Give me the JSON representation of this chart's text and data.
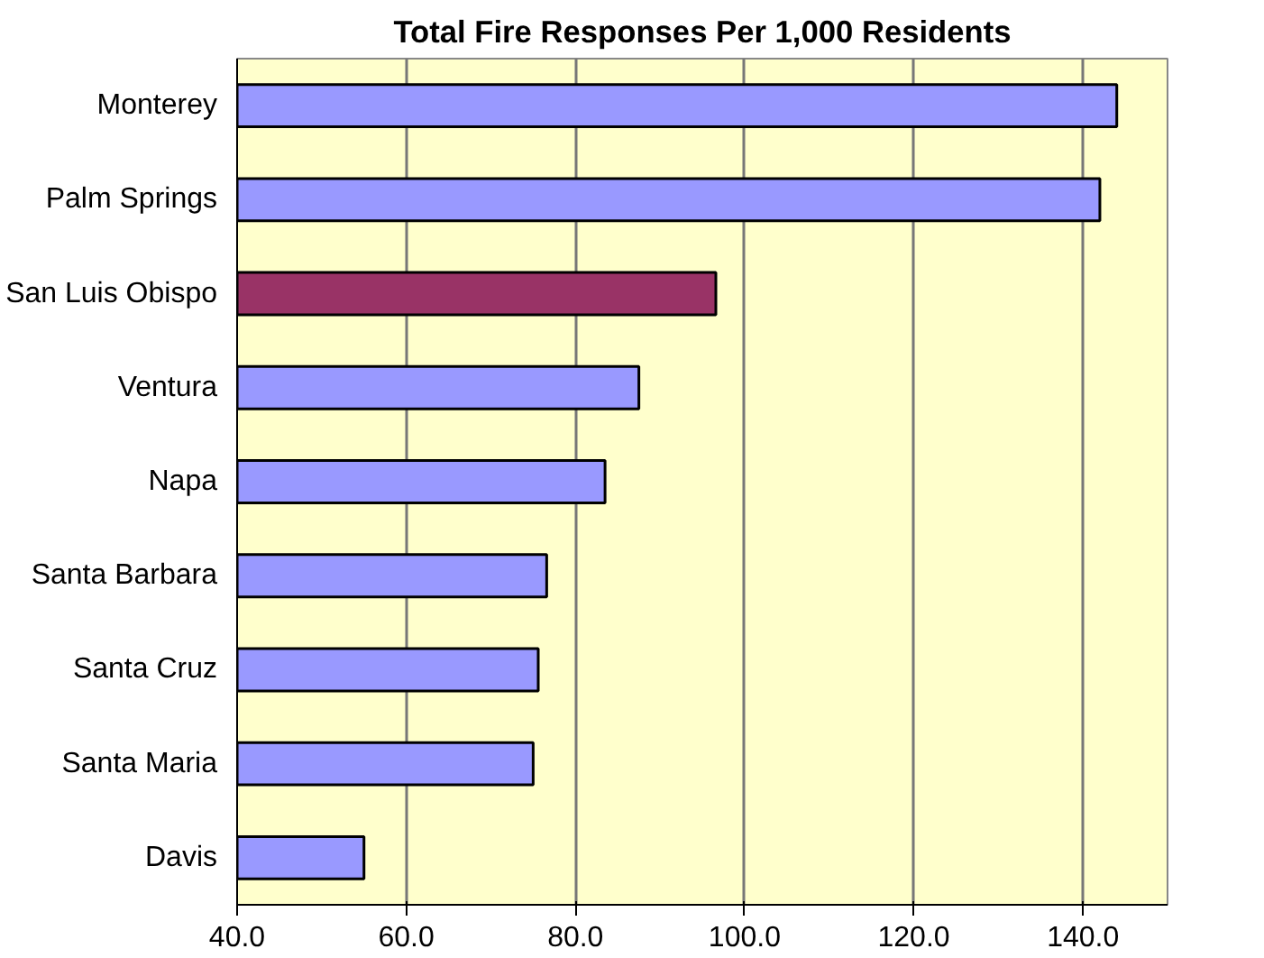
{
  "chart_data": {
    "type": "bar",
    "orientation": "horizontal",
    "title": "Total Fire Responses Per 1,000 Residents",
    "categories": [
      "Monterey",
      "Palm Springs",
      "San Luis Obispo",
      "Ventura",
      "Napa",
      "Santa Barbara",
      "Santa Cruz",
      "Santa Maria",
      "Davis"
    ],
    "values": [
      144,
      142,
      96.6,
      87.5,
      83.5,
      76.6,
      75.6,
      75,
      55
    ],
    "colors": [
      "#9999ff",
      "#9999ff",
      "#993366",
      "#9999ff",
      "#9999ff",
      "#9999ff",
      "#9999ff",
      "#9999ff",
      "#9999ff"
    ],
    "xlim": [
      40,
      150
    ],
    "xticks": [
      {
        "value": 40,
        "label": "40.0"
      },
      {
        "value": 60,
        "label": "60.0"
      },
      {
        "value": 80,
        "label": "80.0"
      },
      {
        "value": 100,
        "label": "100.0"
      },
      {
        "value": 120,
        "label": "120.0"
      },
      {
        "value": 140,
        "label": "140.0"
      }
    ],
    "grid": "x"
  }
}
